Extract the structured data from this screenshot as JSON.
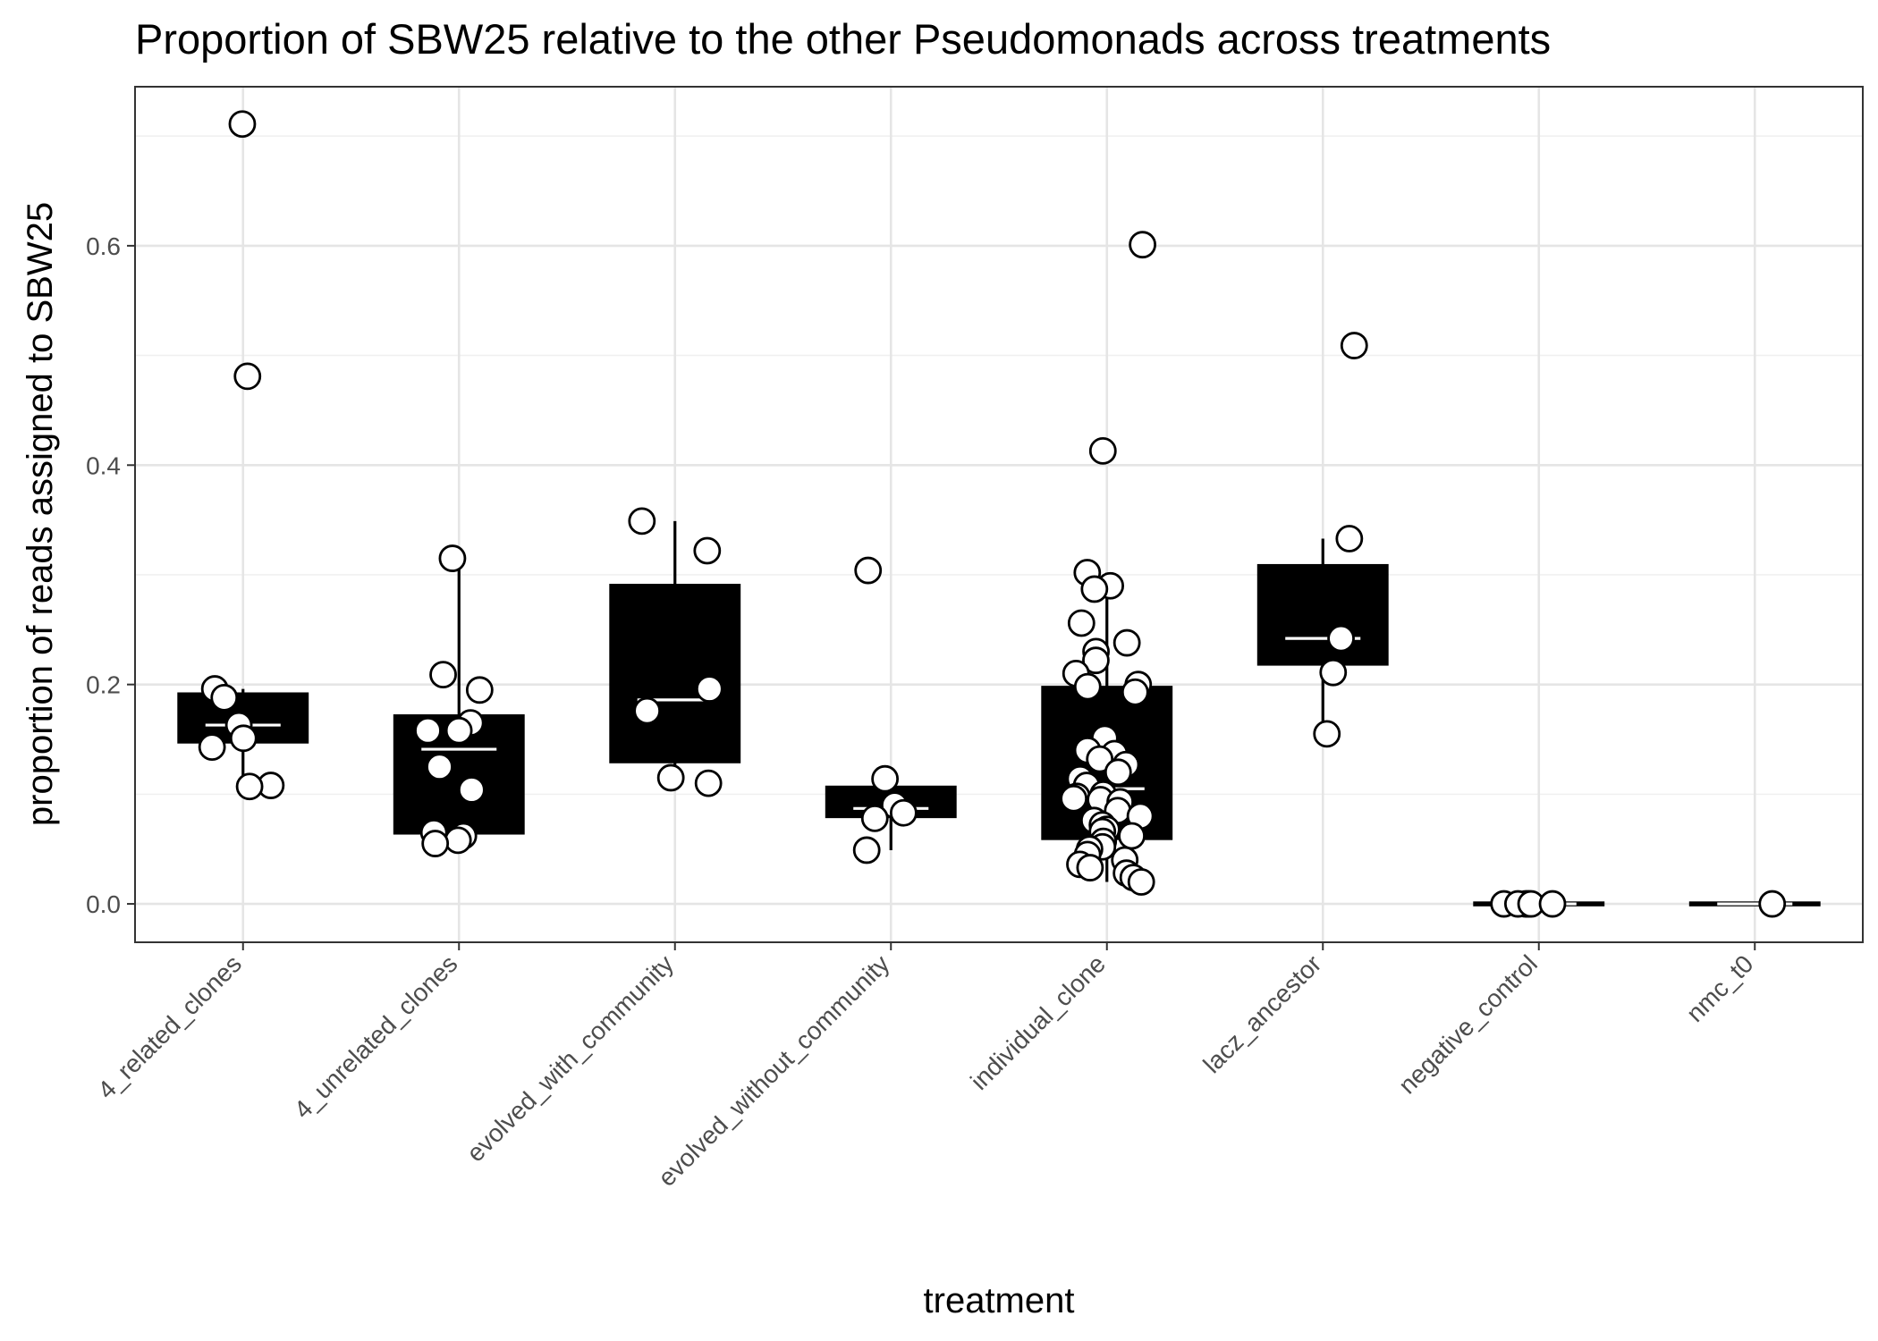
{
  "chart_data": {
    "type": "box",
    "title": "Proportion of SBW25 relative to the other Pseudomonads across treatments",
    "xlabel": "treatment",
    "ylabel": "proportion of reads assigned to SBW25",
    "ylim": [
      -0.035,
      0.745
    ],
    "yticks": [
      0.0,
      0.2,
      0.4,
      0.6
    ],
    "ytick_labels": [
      "0.0",
      "0.2",
      "0.4",
      "0.6"
    ],
    "grid": true,
    "categories": [
      "4_related_clones",
      "4_unrelated_clones",
      "evolved_with_community",
      "evolved_without_community",
      "individual_clone",
      "lacz_ancestor",
      "negative_control",
      "nmc_t0"
    ],
    "boxes": [
      {
        "category": "4_related_clones",
        "q1": 0.147,
        "median": 0.163,
        "q3": 0.192,
        "whisker_low": 0.107,
        "whisker_high": 0.196
      },
      {
        "category": "4_unrelated_clones",
        "q1": 0.064,
        "median": 0.141,
        "q3": 0.172,
        "whisker_low": 0.055,
        "whisker_high": 0.315
      },
      {
        "category": "evolved_with_community",
        "q1": 0.129,
        "median": 0.186,
        "q3": 0.291,
        "whisker_low": 0.11,
        "whisker_high": 0.349
      },
      {
        "category": "evolved_without_community",
        "q1": 0.079,
        "median": 0.087,
        "q3": 0.107,
        "whisker_low": 0.049,
        "whisker_high": 0.114
      },
      {
        "category": "individual_clone",
        "q1": 0.059,
        "median": 0.105,
        "q3": 0.198,
        "whisker_low": 0.02,
        "whisker_high": 0.302
      },
      {
        "category": "lacz_ancestor",
        "q1": 0.218,
        "median": 0.242,
        "q3": 0.309,
        "whisker_low": 0.155,
        "whisker_high": 0.333
      },
      {
        "category": "negative_control",
        "q1": 0.0,
        "median": 0.0,
        "q3": 0.0,
        "whisker_low": 0.0,
        "whisker_high": 0.0
      },
      {
        "category": "nmc_t0",
        "q1": 0.0,
        "median": 0.0,
        "q3": 0.0,
        "whisker_low": 0.0,
        "whisker_high": 0.0
      }
    ],
    "points": [
      {
        "category": "4_related_clones",
        "values": [
          0.711,
          0.481,
          0.196,
          0.188,
          0.163,
          0.151,
          0.143,
          0.108,
          0.107
        ]
      },
      {
        "category": "4_unrelated_clones",
        "values": [
          0.315,
          0.209,
          0.195,
          0.165,
          0.158,
          0.158,
          0.125,
          0.104,
          0.065,
          0.062,
          0.058,
          0.055
        ]
      },
      {
        "category": "evolved_with_community",
        "values": [
          0.349,
          0.322,
          0.196,
          0.176,
          0.115,
          0.11
        ]
      },
      {
        "category": "evolved_without_community",
        "values": [
          0.304,
          0.114,
          0.09,
          0.083,
          0.078,
          0.049
        ]
      },
      {
        "category": "individual_clone",
        "values": [
          0.601,
          0.413,
          0.302,
          0.29,
          0.287,
          0.256,
          0.238,
          0.23,
          0.222,
          0.21,
          0.2,
          0.198,
          0.193,
          0.151,
          0.14,
          0.137,
          0.132,
          0.127,
          0.12,
          0.114,
          0.108,
          0.1,
          0.098,
          0.096,
          0.095,
          0.093,
          0.085,
          0.08,
          0.076,
          0.072,
          0.068,
          0.066,
          0.062,
          0.057,
          0.052,
          0.05,
          0.045,
          0.04,
          0.036,
          0.033,
          0.028,
          0.024,
          0.02
        ]
      },
      {
        "category": "lacz_ancestor",
        "values": [
          0.509,
          0.333,
          0.242,
          0.211,
          0.155
        ]
      },
      {
        "category": "negative_control",
        "values": [
          0.0,
          0.0,
          0.0,
          0.0,
          0.0,
          0.0
        ]
      },
      {
        "category": "nmc_t0",
        "values": [
          0.0
        ]
      }
    ]
  }
}
